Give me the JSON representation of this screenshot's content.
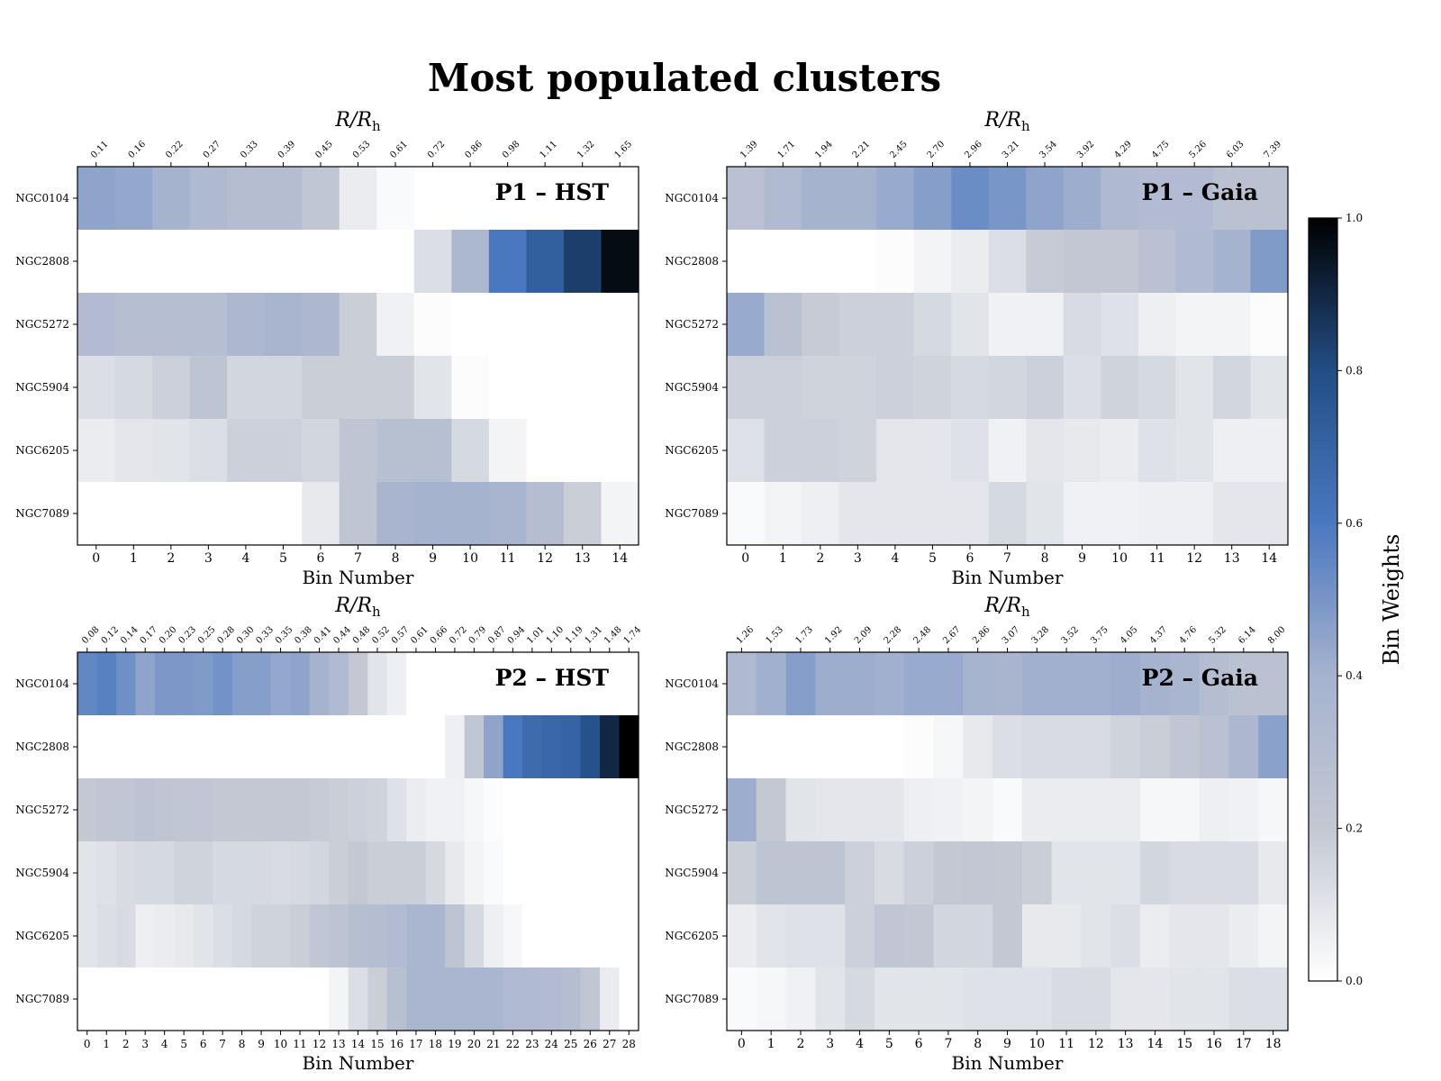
{
  "page": {
    "title": "Most populated clusters"
  },
  "colorbar": {
    "label": "Bin Weights",
    "ticks": [
      "0.0",
      "0.2",
      "0.4",
      "0.6",
      "0.8",
      "1.0"
    ],
    "range": [
      0,
      1
    ],
    "colormap": [
      "#ffffff",
      "#c3c8d3",
      "#a6b3cf",
      "#4a78c0",
      "#224e85",
      "#000000"
    ]
  },
  "chart_data": [
    {
      "type": "heatmap",
      "label": "P1 – HST",
      "xlabel": "Bin Number",
      "top_xlabel": "R/R_h",
      "rows": [
        "NGC0104",
        "NGC2808",
        "NGC5272",
        "NGC5904",
        "NGC6205",
        "NGC7089"
      ],
      "x": [
        0,
        1,
        2,
        3,
        4,
        5,
        6,
        7,
        8,
        9,
        10,
        11,
        12,
        13,
        14
      ],
      "top_ticks": [
        "0.11",
        "0.16",
        "0.22",
        "0.27",
        "0.33",
        "0.39",
        "0.45",
        "0.53",
        "0.61",
        "0.72",
        "0.86",
        "0.98",
        "1.11",
        "1.32",
        "1.65"
      ],
      "values": [
        [
          0.45,
          0.44,
          0.4,
          0.34,
          0.3,
          0.3,
          0.22,
          0.07,
          0.02,
          0,
          0,
          0,
          0,
          0,
          0
        ],
        [
          0,
          0,
          0,
          0,
          0,
          0,
          0,
          0,
          0,
          0.12,
          0.36,
          0.6,
          0.72,
          0.84,
          0.97
        ],
        [
          0.32,
          0.29,
          0.29,
          0.29,
          0.35,
          0.38,
          0.35,
          0.18,
          0.05,
          0.01,
          0,
          0,
          0,
          0,
          0
        ],
        [
          0.12,
          0.14,
          0.17,
          0.24,
          0.15,
          0.15,
          0.18,
          0.18,
          0.18,
          0.1,
          0.01,
          0,
          0,
          0,
          0
        ],
        [
          0.07,
          0.09,
          0.1,
          0.12,
          0.17,
          0.17,
          0.15,
          0.23,
          0.28,
          0.28,
          0.14,
          0.04,
          0,
          0,
          0
        ],
        [
          0,
          0,
          0,
          0,
          0,
          0,
          0.08,
          0.23,
          0.38,
          0.4,
          0.4,
          0.38,
          0.3,
          0.18,
          0.04
        ]
      ]
    },
    {
      "type": "heatmap",
      "label": "P1 – Gaia",
      "xlabel": "Bin Number",
      "top_xlabel": "R/R_h",
      "rows": [
        "NGC0104",
        "NGC2808",
        "NGC5272",
        "NGC5904",
        "NGC6205",
        "NGC7089"
      ],
      "x": [
        0,
        1,
        2,
        3,
        4,
        5,
        6,
        7,
        8,
        9,
        10,
        11,
        12,
        13,
        14
      ],
      "top_ticks": [
        "1.39",
        "1.71",
        "1.94",
        "2.21",
        "2.45",
        "2.70",
        "2.96",
        "3.21",
        "3.54",
        "3.92",
        "4.29",
        "4.75",
        "5.26",
        "6.03",
        "7.39"
      ],
      "values": [
        [
          0.27,
          0.33,
          0.4,
          0.4,
          0.43,
          0.47,
          0.53,
          0.5,
          0.45,
          0.42,
          0.34,
          0.32,
          0.32,
          0.26,
          0.26
        ],
        [
          0,
          0,
          0,
          0,
          0.01,
          0.04,
          0.07,
          0.12,
          0.19,
          0.21,
          0.21,
          0.27,
          0.33,
          0.4,
          0.48
        ],
        [
          0.43,
          0.26,
          0.19,
          0.17,
          0.17,
          0.14,
          0.1,
          0.05,
          0.05,
          0.13,
          0.11,
          0.06,
          0.04,
          0.04,
          0.01
        ],
        [
          0.17,
          0.17,
          0.16,
          0.16,
          0.17,
          0.16,
          0.14,
          0.15,
          0.17,
          0.12,
          0.16,
          0.14,
          0.1,
          0.15,
          0.1
        ],
        [
          0.11,
          0.17,
          0.17,
          0.16,
          0.09,
          0.09,
          0.11,
          0.05,
          0.09,
          0.08,
          0.07,
          0.11,
          0.1,
          0.06,
          0.06
        ],
        [
          0.02,
          0.04,
          0.06,
          0.09,
          0.09,
          0.09,
          0.09,
          0.14,
          0.1,
          0.05,
          0.05,
          0.06,
          0.06,
          0.09,
          0.09
        ]
      ]
    },
    {
      "type": "heatmap",
      "label": "P2 – HST",
      "xlabel": "Bin Number",
      "top_xlabel": "R/R_h",
      "rows": [
        "NGC0104",
        "NGC2808",
        "NGC5272",
        "NGC5904",
        "NGC6205",
        "NGC7089"
      ],
      "x": [
        0,
        1,
        2,
        3,
        4,
        5,
        6,
        7,
        8,
        9,
        10,
        11,
        12,
        13,
        14,
        15,
        16,
        17,
        18,
        19,
        20,
        21,
        22,
        23,
        24,
        25,
        26,
        27,
        28
      ],
      "top_ticks": [
        "0.08",
        "0.12",
        "0.14",
        "0.17",
        "0.20",
        "0.23",
        "0.25",
        "0.28",
        "0.30",
        "0.33",
        "0.35",
        "0.38",
        "0.41",
        "0.44",
        "0.48",
        "0.52",
        "0.57",
        "0.61",
        "0.66",
        "0.72",
        "0.79",
        "0.87",
        "0.94",
        "1.01",
        "1.10",
        "1.19",
        "1.31",
        "1.48",
        "1.74"
      ],
      "values": [
        [
          0.55,
          0.57,
          0.52,
          0.45,
          0.49,
          0.49,
          0.48,
          0.51,
          0.47,
          0.47,
          0.44,
          0.45,
          0.4,
          0.33,
          0.2,
          0.1,
          0.06,
          0,
          0,
          0,
          0,
          0,
          0,
          0,
          0,
          0,
          0,
          0,
          0
        ],
        [
          0,
          0,
          0,
          0,
          0,
          0,
          0,
          0,
          0,
          0,
          0,
          0,
          0,
          0,
          0,
          0,
          0,
          0,
          0,
          0.06,
          0.22,
          0.45,
          0.6,
          0.66,
          0.68,
          0.7,
          0.78,
          0.9,
          1.0
        ],
        [
          0.2,
          0.22,
          0.22,
          0.25,
          0.23,
          0.22,
          0.22,
          0.2,
          0.2,
          0.2,
          0.2,
          0.2,
          0.19,
          0.18,
          0.17,
          0.16,
          0.11,
          0.07,
          0.05,
          0.05,
          0.03,
          0.01,
          0,
          0,
          0,
          0,
          0,
          0,
          0
        ],
        [
          0.1,
          0.11,
          0.13,
          0.14,
          0.14,
          0.16,
          0.16,
          0.14,
          0.14,
          0.14,
          0.13,
          0.14,
          0.15,
          0.18,
          0.2,
          0.18,
          0.18,
          0.18,
          0.14,
          0.08,
          0.04,
          0.02,
          0,
          0,
          0,
          0,
          0,
          0,
          0
        ],
        [
          0.1,
          0.12,
          0.13,
          0.06,
          0.07,
          0.08,
          0.1,
          0.12,
          0.14,
          0.16,
          0.16,
          0.18,
          0.22,
          0.25,
          0.29,
          0.3,
          0.32,
          0.37,
          0.37,
          0.24,
          0.14,
          0.06,
          0.03,
          0,
          0,
          0,
          0,
          0,
          0
        ],
        [
          0,
          0,
          0,
          0,
          0,
          0,
          0,
          0,
          0,
          0,
          0,
          0,
          0,
          0.04,
          0.12,
          0.18,
          0.28,
          0.37,
          0.37,
          0.37,
          0.37,
          0.37,
          0.33,
          0.33,
          0.32,
          0.3,
          0.22,
          0.07,
          0
        ]
      ]
    },
    {
      "type": "heatmap",
      "label": "P2 – Gaia",
      "xlabel": "Bin Number",
      "top_xlabel": "R/R_h",
      "rows": [
        "NGC0104",
        "NGC2808",
        "NGC5272",
        "NGC5904",
        "NGC6205",
        "NGC7089"
      ],
      "x": [
        0,
        1,
        2,
        3,
        4,
        5,
        6,
        7,
        8,
        9,
        10,
        11,
        12,
        13,
        14,
        15,
        16,
        17,
        18
      ],
      "top_ticks": [
        "1.26",
        "1.53",
        "1.73",
        "1.92",
        "2.09",
        "2.28",
        "2.48",
        "2.67",
        "2.86",
        "3.07",
        "3.28",
        "3.52",
        "3.75",
        "4.05",
        "4.37",
        "4.76",
        "5.32",
        "6.14",
        "8.00"
      ],
      "values": [
        [
          0.34,
          0.41,
          0.47,
          0.42,
          0.42,
          0.41,
          0.43,
          0.43,
          0.39,
          0.38,
          0.41,
          0.41,
          0.41,
          0.42,
          0.4,
          0.37,
          0.3,
          0.26,
          0.26
        ],
        [
          0,
          0,
          0,
          0,
          0,
          0,
          0.01,
          0.03,
          0.08,
          0.12,
          0.13,
          0.13,
          0.13,
          0.16,
          0.18,
          0.22,
          0.27,
          0.35,
          0.46
        ],
        [
          0.42,
          0.2,
          0.1,
          0.09,
          0.09,
          0.09,
          0.06,
          0.05,
          0.04,
          0.02,
          0.07,
          0.07,
          0.07,
          0.07,
          0.03,
          0.03,
          0.06,
          0.05,
          0.03
        ],
        [
          0.18,
          0.24,
          0.24,
          0.24,
          0.17,
          0.13,
          0.17,
          0.2,
          0.21,
          0.2,
          0.18,
          0.1,
          0.1,
          0.1,
          0.15,
          0.13,
          0.13,
          0.13,
          0.08
        ],
        [
          0.07,
          0.1,
          0.11,
          0.11,
          0.17,
          0.22,
          0.21,
          0.15,
          0.15,
          0.2,
          0.08,
          0.08,
          0.1,
          0.12,
          0.07,
          0.09,
          0.09,
          0.07,
          0.04
        ],
        [
          0.02,
          0.03,
          0.05,
          0.1,
          0.14,
          0.1,
          0.1,
          0.1,
          0.11,
          0.11,
          0.11,
          0.13,
          0.13,
          0.09,
          0.09,
          0.1,
          0.1,
          0.12,
          0.12
        ]
      ]
    }
  ]
}
